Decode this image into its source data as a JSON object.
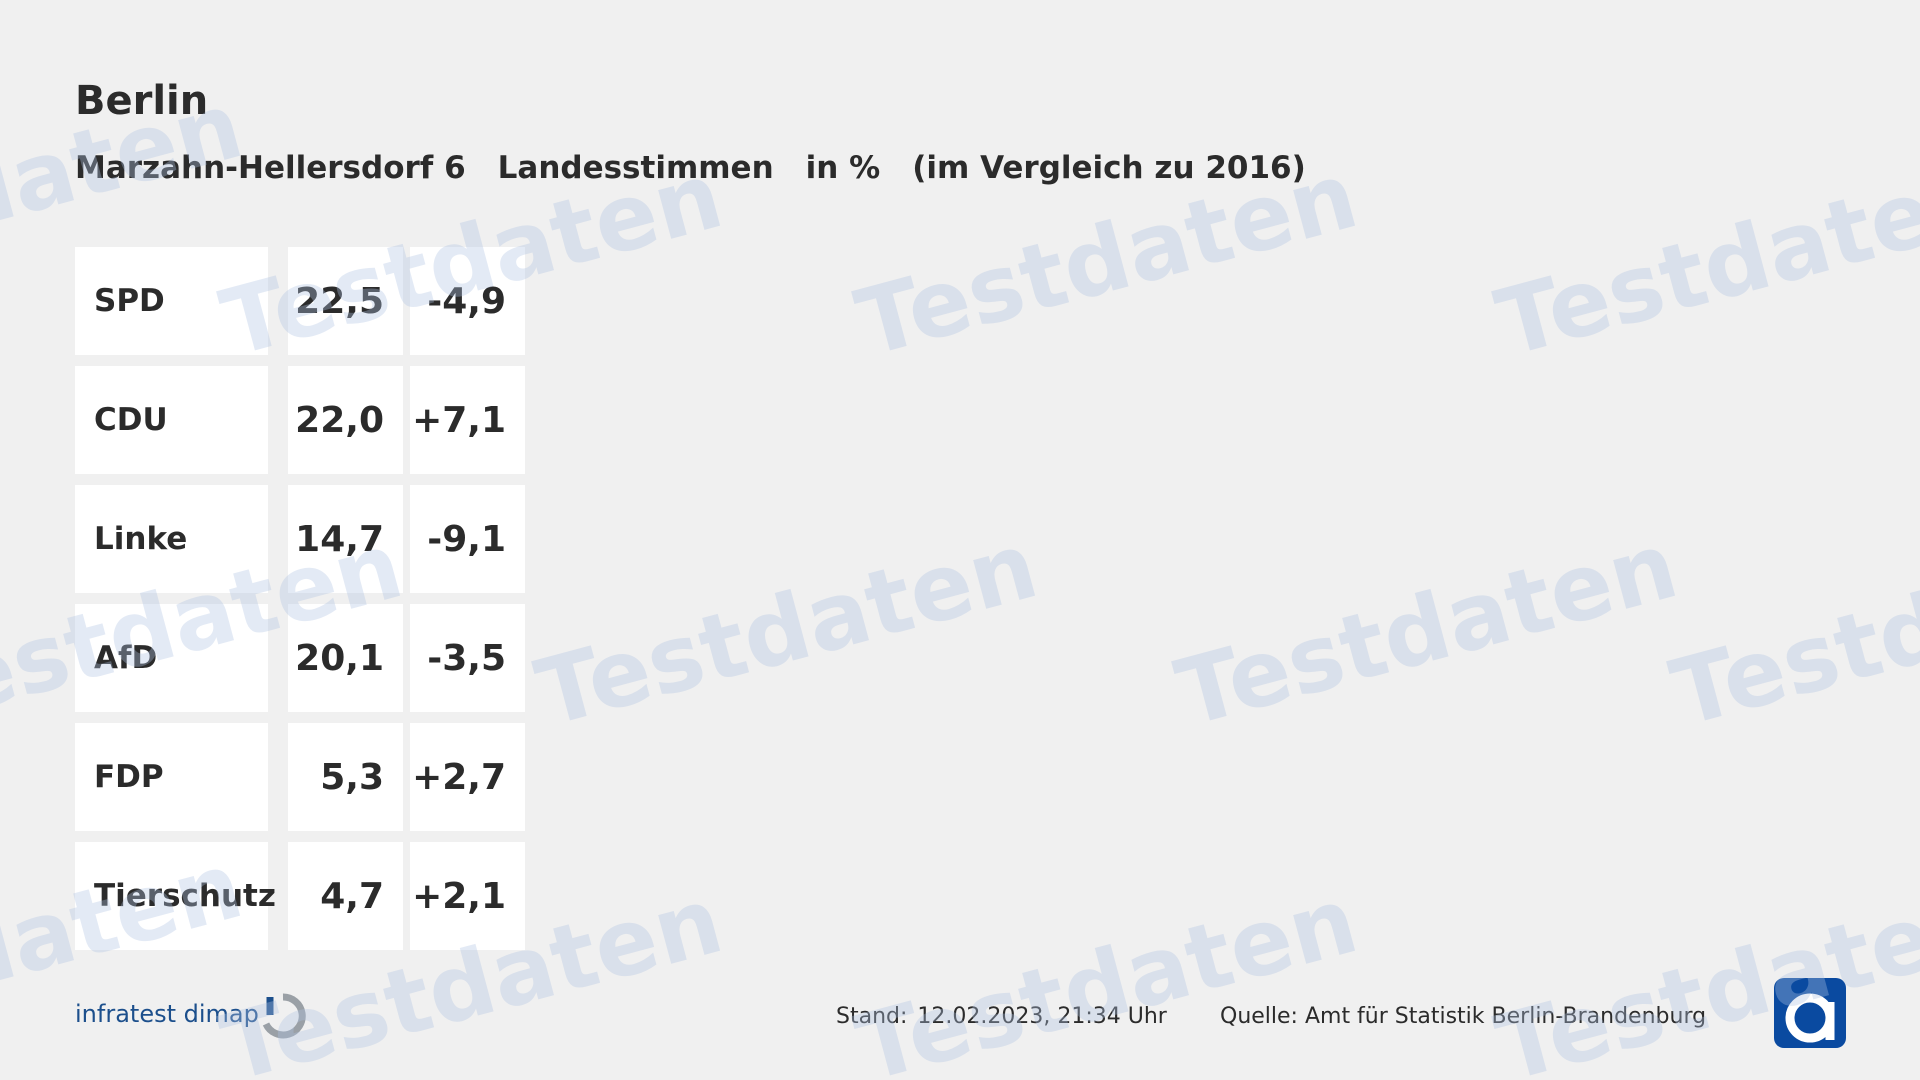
{
  "header": {
    "title": "Berlin",
    "subtitle": [
      "Marzahn-Hellersdorf 6",
      "Landesstimmen",
      "in %",
      "(im Vergleich zu 2016)"
    ]
  },
  "table": {
    "rows": [
      [
        "SPD",
        "22,5",
        "-4,9"
      ],
      [
        "CDU",
        "22,0",
        "+7,1"
      ],
      [
        "Linke",
        "14,7",
        "-9,1"
      ],
      [
        "AfD",
        "20,1",
        "-3,5"
      ],
      [
        "FDP",
        "5,3",
        "+2,7"
      ],
      [
        "Tierschutz",
        "4,7",
        "+2,1"
      ]
    ]
  },
  "footer": {
    "brand": "infratest dimap",
    "stand_label": "Stand:",
    "stand": "12.02.2023, 21:34 Uhr",
    "source": "Quelle: Amt für Statistik Berlin-Brandenburg"
  },
  "watermark": "Testdaten"
}
